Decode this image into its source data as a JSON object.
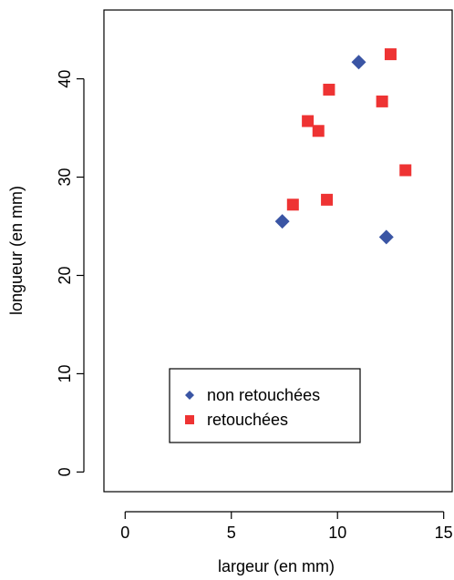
{
  "chart_data": {
    "type": "scatter",
    "title": "",
    "xlabel": "largeur (en mm)",
    "ylabel": "longueur (en mm)",
    "xlim": [
      -1,
      15.4
    ],
    "ylim": [
      -2,
      47
    ],
    "x_ticks": [
      0,
      5,
      10,
      15
    ],
    "y_ticks": [
      0,
      10,
      20,
      30,
      40
    ],
    "grid": false,
    "legend_position": "bottom-center",
    "series": [
      {
        "name": "non retouchées",
        "marker": "diamond",
        "color": "#3a55a4",
        "points": [
          {
            "x": 7.4,
            "y": 25.5
          },
          {
            "x": 11.0,
            "y": 41.7
          },
          {
            "x": 12.3,
            "y": 23.9
          }
        ]
      },
      {
        "name": "retouchées",
        "marker": "square",
        "color": "#ee3333",
        "points": [
          {
            "x": 7.9,
            "y": 27.2
          },
          {
            "x": 8.6,
            "y": 35.7
          },
          {
            "x": 9.1,
            "y": 34.7
          },
          {
            "x": 9.5,
            "y": 27.7
          },
          {
            "x": 9.6,
            "y": 38.9
          },
          {
            "x": 12.1,
            "y": 37.7
          },
          {
            "x": 12.5,
            "y": 42.5
          },
          {
            "x": 13.2,
            "y": 30.7
          }
        ]
      }
    ]
  }
}
